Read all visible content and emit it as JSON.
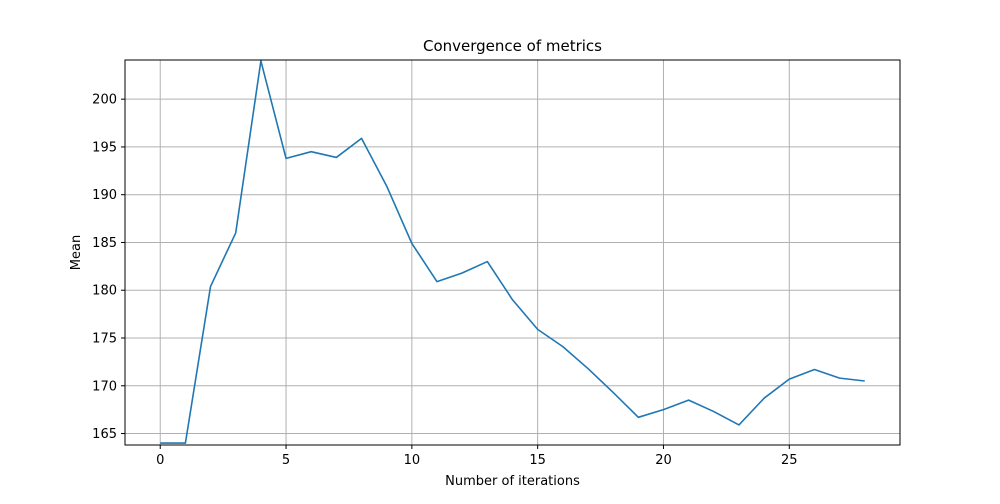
{
  "chart_data": {
    "type": "line",
    "title": "Convergence of metrics",
    "xlabel": "Number of iterations",
    "ylabel": "Mean",
    "xlim": [
      -1.4,
      29.4
    ],
    "ylim": [
      163.8,
      204.1
    ],
    "xticks": [
      0,
      5,
      10,
      15,
      20,
      25
    ],
    "yticks": [
      165,
      170,
      175,
      180,
      185,
      190,
      195,
      200
    ],
    "grid": true,
    "series": [
      {
        "color": "#1f77b4",
        "x": [
          0,
          1,
          2,
          3,
          4,
          5,
          6,
          7,
          8,
          9,
          10,
          11,
          12,
          13,
          14,
          15,
          16,
          17,
          18,
          19,
          20,
          21,
          22,
          23,
          24,
          25,
          26,
          27,
          28
        ],
        "y": [
          164.0,
          164.0,
          180.4,
          186.0,
          204.0,
          193.8,
          194.5,
          193.9,
          195.9,
          190.9,
          184.9,
          180.9,
          181.8,
          183.0,
          179.0,
          175.9,
          174.1,
          171.8,
          169.3,
          166.7,
          167.5,
          168.5,
          167.3,
          165.9,
          168.7,
          170.7,
          171.7,
          170.8,
          170.5
        ]
      }
    ]
  }
}
